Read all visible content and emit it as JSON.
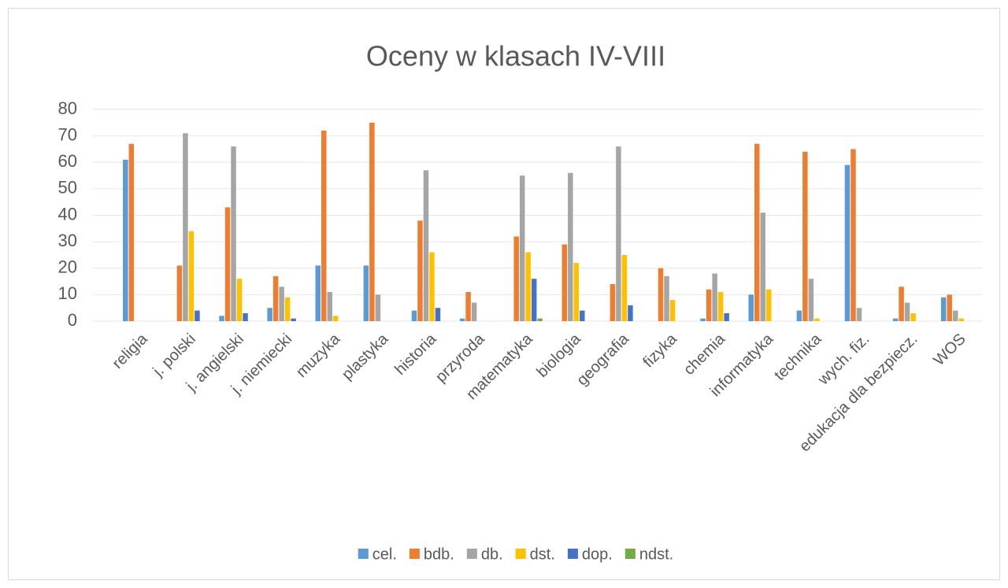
{
  "chart_data": {
    "type": "bar",
    "title": "Oceny w klasach IV-VIII",
    "categories": [
      "religia",
      "j. polski",
      "j. angielski",
      "j. niemiecki",
      "muzyka",
      "plastyka",
      "historia",
      "przyroda",
      "matematyka",
      "biologia",
      "geografia",
      "fizyka",
      "chemia",
      "informatyka",
      "technika",
      "wych. fiz.",
      "edukacja dla bezpiecz.",
      "WOS"
    ],
    "series": [
      {
        "name": "cel.",
        "color": "#5b9bd5",
        "values": [
          61,
          0,
          2,
          5,
          21,
          21,
          4,
          1,
          0,
          0,
          0,
          0,
          1,
          10,
          4,
          59,
          1,
          9
        ]
      },
      {
        "name": "bdb.",
        "color": "#ed7d31",
        "values": [
          67,
          21,
          43,
          17,
          72,
          75,
          38,
          11,
          32,
          29,
          14,
          20,
          12,
          67,
          64,
          65,
          13,
          10
        ]
      },
      {
        "name": "db.",
        "color": "#a5a5a5",
        "values": [
          0,
          71,
          66,
          13,
          11,
          10,
          57,
          7,
          55,
          56,
          66,
          17,
          18,
          41,
          16,
          5,
          7,
          4
        ]
      },
      {
        "name": "dst.",
        "color": "#ffc000",
        "values": [
          0,
          34,
          16,
          9,
          2,
          0,
          26,
          0,
          26,
          22,
          25,
          8,
          11,
          12,
          1,
          0,
          3,
          1
        ]
      },
      {
        "name": "dop.",
        "color": "#4472c4",
        "values": [
          0,
          4,
          3,
          1,
          0,
          0,
          5,
          0,
          16,
          4,
          6,
          0,
          3,
          0,
          0,
          0,
          0,
          0
        ]
      },
      {
        "name": "ndst.",
        "color": "#70ad47",
        "values": [
          0,
          0,
          0,
          0,
          0,
          0,
          0,
          0,
          1,
          0,
          0,
          0,
          0,
          0,
          0,
          0,
          0,
          0
        ]
      }
    ],
    "ylim": [
      0,
      80
    ],
    "yticks": [
      0,
      10,
      20,
      30,
      40,
      50,
      60,
      70,
      80
    ],
    "grid": true,
    "legend": "bottom"
  }
}
